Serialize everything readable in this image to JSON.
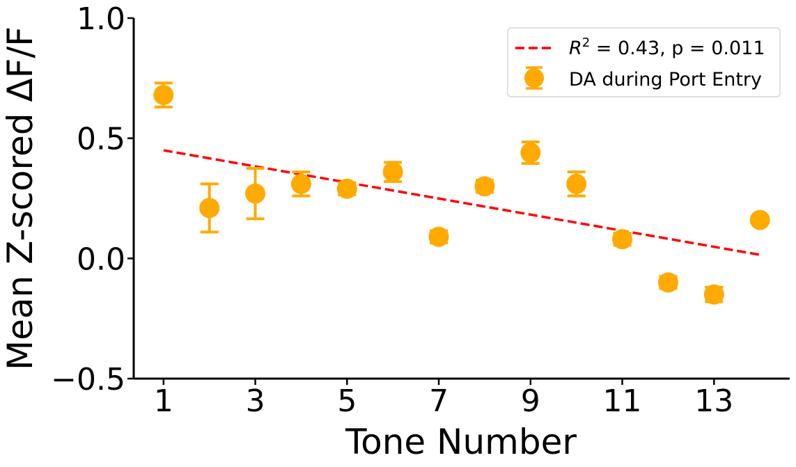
{
  "chart_data": {
    "type": "scatter",
    "xlabel": "Tone Number",
    "ylabel": "Mean Z-scored ΔF/F",
    "xlim": [
      0.35,
      14.65
    ],
    "ylim": [
      -0.5,
      1.0
    ],
    "xticks": [
      1,
      3,
      5,
      7,
      9,
      11,
      13
    ],
    "xtick_labels": [
      "1",
      "3",
      "5",
      "7",
      "9",
      "11",
      "13"
    ],
    "yticks": [
      -0.5,
      0.0,
      0.5,
      1.0
    ],
    "ytick_labels": [
      "−0.5",
      "0.0",
      "0.5",
      "1.0"
    ],
    "grid": false,
    "legend_position": "top-right",
    "series": [
      {
        "name": "DA during Port Entry",
        "color": "#FFAA00",
        "marker": "circle",
        "x": [
          1,
          2,
          3,
          4,
          5,
          6,
          7,
          8,
          9,
          10,
          11,
          12,
          13,
          14
        ],
        "y": [
          0.68,
          0.21,
          0.27,
          0.31,
          0.29,
          0.36,
          0.09,
          0.3,
          0.44,
          0.31,
          0.08,
          -0.1,
          -0.15,
          0.16
        ],
        "error": [
          0.05,
          0.1,
          0.105,
          0.05,
          0.025,
          0.04,
          0.025,
          0.025,
          0.045,
          0.05,
          0.025,
          0.025,
          0.03,
          0.015
        ]
      }
    ],
    "trendline": {
      "label_prefix": "R",
      "label_superscript": "2",
      "label_rest": " = 0.43, p = 0.011",
      "color": "#FF0000",
      "style": "dashed",
      "x": [
        1,
        14
      ],
      "y": [
        0.45,
        0.015
      ]
    }
  }
}
